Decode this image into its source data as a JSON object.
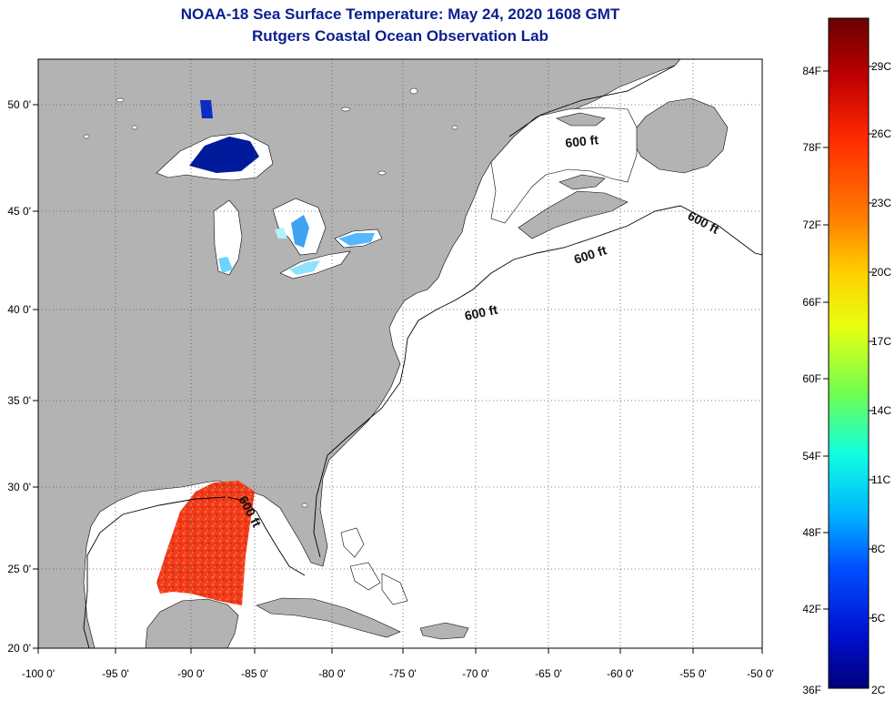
{
  "header": {
    "title": "NOAA-18 Sea Surface Temperature:  May 24, 2020 1608 GMT",
    "subtitle": "Rutgers Coastal Ocean Observation Lab"
  },
  "map": {
    "lon_labels": [
      "-100 0'",
      "-95 0'",
      "-90 0'",
      "-85 0'",
      "-80 0'",
      "-75 0'",
      "-70 0'",
      "-65 0'",
      "-60 0'",
      "-55 0'",
      "-50 0'"
    ],
    "lat_labels": [
      "50 0'",
      "45 0'",
      "40 0'",
      "35 0'",
      "30 0'",
      "25 0'",
      "20 0'"
    ],
    "contour_label": "600 ft",
    "colors": {
      "land": "#b3b3b3",
      "ocean": "#ffffff",
      "grid": "#666666"
    }
  },
  "colorbar": {
    "fahrenheit": [
      "84F",
      "78F",
      "72F",
      "66F",
      "60F",
      "54F",
      "48F",
      "42F",
      "36F"
    ],
    "celsius": [
      "29C",
      "26C",
      "23C",
      "20C",
      "17C",
      "14C",
      "11C",
      "8C",
      "5C",
      "2C"
    ],
    "stops": [
      "#6b0000",
      "#c00000",
      "#ff2a00",
      "#ff7f00",
      "#ffd000",
      "#e8ff10",
      "#70ff50",
      "#10ffe0",
      "#00b4ff",
      "#0050ff",
      "#0010d0",
      "#00007a"
    ]
  },
  "chart_data": {
    "type": "heatmap",
    "title": "NOAA-18 Sea Surface Temperature:  May 24, 2020 1608 GMT",
    "subtitle": "Rutgers Coastal Ocean Observation Lab",
    "xlim": [
      -100,
      -50
    ],
    "ylim": [
      20,
      52
    ],
    "x_ticks": [
      -100,
      -95,
      -90,
      -85,
      -80,
      -75,
      -70,
      -65,
      -60,
      -55,
      -50
    ],
    "y_ticks": [
      50,
      45,
      40,
      35,
      30,
      25,
      20
    ],
    "colorbar_range_F": [
      36,
      86
    ],
    "colorbar_range_C": [
      2,
      30
    ],
    "contour": "600 ft",
    "observed_regions": [
      {
        "name": "Gulf of Mexico",
        "approx_temp_C": 27
      },
      {
        "name": "Lake Superior",
        "approx_temp_C": 3
      },
      {
        "name": "Lake Michigan",
        "approx_temp_C": 10
      },
      {
        "name": "Lake Huron",
        "approx_temp_C": 9
      },
      {
        "name": "Lake Erie",
        "approx_temp_C": 12
      },
      {
        "name": "Lake Ontario",
        "approx_temp_C": 10
      }
    ]
  }
}
